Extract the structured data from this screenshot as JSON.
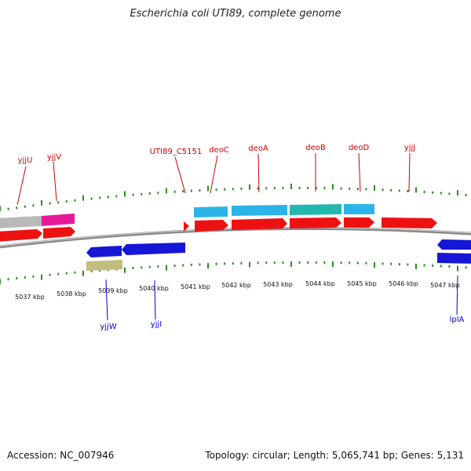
{
  "title": "Escherichia coli UTI89, complete genome",
  "footer": {
    "accession": "Accession: NC_007946",
    "summary": "Topology: circular; Length: 5,065,741 bp; Genes: 5,131"
  },
  "colors": {
    "background": "#ffffff",
    "backbone": "#8a8a8a",
    "tick": "#2e8b22",
    "label_forward": "#cc0000",
    "label_reverse": "#0000cc",
    "gene_red": "#ee1111",
    "gene_blue": "#1616d6",
    "gene_cyan": "#2ab4e8",
    "gene_teal": "#22b8b0",
    "gene_magenta": "#e8189a",
    "gene_gray": "#b9b9b9",
    "gene_olive": "#c2bd7e",
    "coord_text": "#111111"
  },
  "scale_labels": [
    "5037 kbp",
    "5038 kbp",
    "5039 kbp",
    "5040 kbp",
    "5041 kbp",
    "5042 kbp",
    "5043 kbp",
    "5044 kbp",
    "5045 kbp",
    "5046 kbp",
    "5047 kbp"
  ],
  "gene_labels": {
    "forward": [
      "yjjU",
      "yjjV",
      "UTI89_C5151",
      "deoC",
      "deoA",
      "deoB",
      "deoD",
      "yjjJ"
    ],
    "reverse": [
      "yjjW",
      "yjjI",
      "lplA"
    ]
  }
}
